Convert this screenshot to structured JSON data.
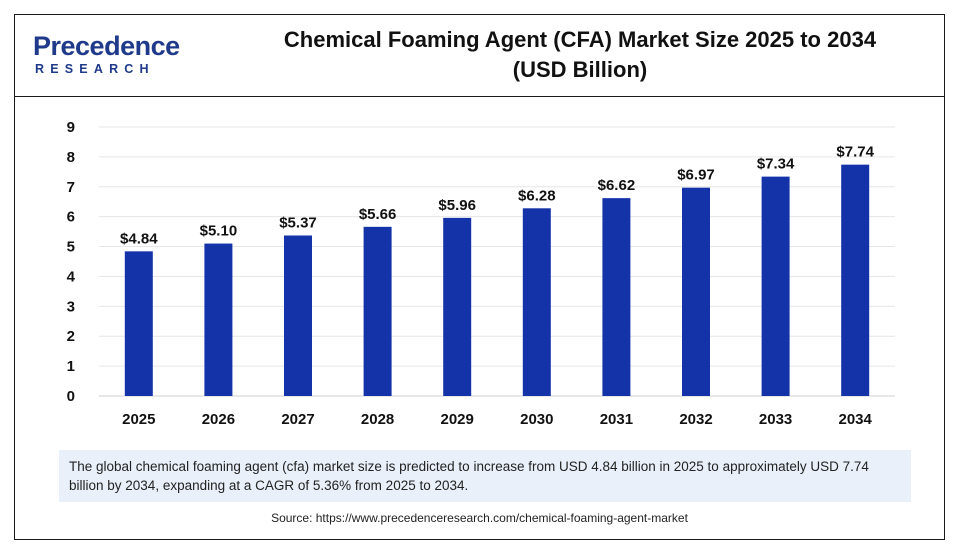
{
  "logo": {
    "main_before": "P",
    "main_after": "recedence",
    "sub": "RESEARCH"
  },
  "title_line1": "Chemical Foaming Agent (CFA) Market Size 2025 to 2034",
  "title_line2": "(USD Billion)",
  "chart_data": {
    "type": "bar",
    "categories": [
      "2025",
      "2026",
      "2027",
      "2028",
      "2029",
      "2030",
      "2031",
      "2032",
      "2033",
      "2034"
    ],
    "values": [
      4.84,
      5.1,
      5.37,
      5.66,
      5.96,
      6.28,
      6.62,
      6.97,
      7.34,
      7.74
    ],
    "data_labels": [
      "$4.84",
      "$5.10",
      "$5.37",
      "$5.66",
      "$5.96",
      "$6.28",
      "$6.62",
      "$6.97",
      "$7.34",
      "$7.74"
    ],
    "yticks": [
      "0",
      "1",
      "2",
      "3",
      "4",
      "5",
      "6",
      "7",
      "8",
      "9"
    ],
    "ylim": [
      0,
      9
    ],
    "grid": true,
    "bar_color": "#1433a8"
  },
  "note": "The global chemical foaming agent (cfa) market size is predicted to increase from USD 4.84 billion in 2025 to approximately USD 7.74 billion by 2034, expanding at a CAGR of 5.36% from 2025 to 2034.",
  "source": "Source: https://www.precedenceresearch.com/chemical-foaming-agent-market"
}
